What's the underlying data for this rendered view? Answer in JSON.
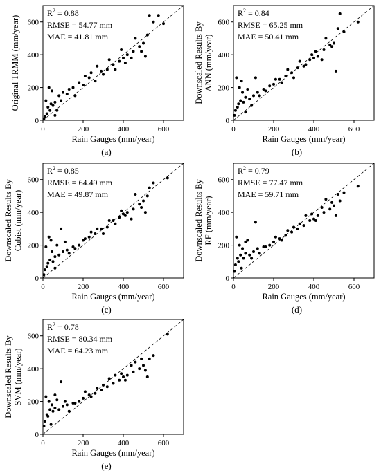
{
  "chart_data": [
    {
      "type": "scatter",
      "panel_label": "(a)",
      "xlabel": "Rain Gauges (mm/year)",
      "ylabel_lines": [
        "Original TRMM (mm/year)"
      ],
      "xlim": [
        0,
        700
      ],
      "ylim": [
        0,
        700
      ],
      "xticks": [
        0,
        200,
        400,
        600
      ],
      "yticks": [
        0,
        200,
        400,
        600
      ],
      "stats": {
        "r2": "0.88",
        "rmse": "RMSE = 54.77 mm",
        "mae": "MAE = 41.81 mm"
      },
      "reference_line": "1:1 dashed",
      "points": [
        [
          10,
          25
        ],
        [
          20,
          40
        ],
        [
          35,
          60
        ],
        [
          50,
          90
        ],
        [
          60,
          110
        ],
        [
          80,
          150
        ],
        [
          100,
          170
        ],
        [
          120,
          160
        ],
        [
          150,
          200
        ],
        [
          180,
          230
        ],
        [
          200,
          215
        ],
        [
          230,
          260
        ],
        [
          260,
          240
        ],
        [
          290,
          300
        ],
        [
          320,
          310
        ],
        [
          350,
          340
        ],
        [
          380,
          360
        ],
        [
          400,
          380
        ],
        [
          420,
          400
        ],
        [
          450,
          420
        ],
        [
          480,
          450
        ],
        [
          500,
          470
        ],
        [
          530,
          640
        ],
        [
          550,
          600
        ],
        [
          600,
          590
        ],
        [
          15,
          120
        ],
        [
          30,
          200
        ],
        [
          45,
          180
        ],
        [
          5,
          10
        ],
        [
          25,
          80
        ],
        [
          70,
          60
        ],
        [
          90,
          120
        ],
        [
          130,
          190
        ],
        [
          160,
          150
        ],
        [
          210,
          270
        ],
        [
          240,
          290
        ],
        [
          270,
          330
        ],
        [
          300,
          280
        ],
        [
          330,
          370
        ],
        [
          360,
          310
        ],
        [
          390,
          430
        ],
        [
          410,
          350
        ],
        [
          440,
          380
        ],
        [
          460,
          500
        ],
        [
          490,
          420
        ],
        [
          510,
          390
        ],
        [
          520,
          520
        ],
        [
          575,
          640
        ],
        [
          40,
          100
        ],
        [
          60,
          30
        ]
      ]
    },
    {
      "type": "scatter",
      "panel_label": "(b)",
      "xlabel": "Rain Gauges (mm/year)",
      "ylabel_lines": [
        "Downscaled Results By",
        "ANN (mm/year)"
      ],
      "xlim": [
        0,
        700
      ],
      "ylim": [
        0,
        700
      ],
      "xticks": [
        0,
        200,
        400,
        600
      ],
      "yticks": [
        0,
        200,
        400,
        600
      ],
      "stats": {
        "r2": "0.84",
        "rmse": "RMSE = 65.25 mm",
        "mae": "MAE = 50.41 mm"
      },
      "reference_line": "1:1 dashed",
      "points": [
        [
          10,
          60
        ],
        [
          20,
          80
        ],
        [
          35,
          120
        ],
        [
          50,
          110
        ],
        [
          60,
          140
        ],
        [
          80,
          130
        ],
        [
          100,
          150
        ],
        [
          120,
          170
        ],
        [
          150,
          190
        ],
        [
          180,
          210
        ],
        [
          200,
          220
        ],
        [
          230,
          250
        ],
        [
          260,
          270
        ],
        [
          290,
          290
        ],
        [
          320,
          320
        ],
        [
          350,
          330
        ],
        [
          380,
          370
        ],
        [
          400,
          380
        ],
        [
          420,
          390
        ],
        [
          450,
          430
        ],
        [
          480,
          460
        ],
        [
          500,
          470
        ],
        [
          530,
          650
        ],
        [
          550,
          540
        ],
        [
          620,
          600
        ],
        [
          15,
          260
        ],
        [
          30,
          200
        ],
        [
          45,
          170
        ],
        [
          5,
          30
        ],
        [
          25,
          100
        ],
        [
          70,
          190
        ],
        [
          90,
          90
        ],
        [
          130,
          150
        ],
        [
          160,
          180
        ],
        [
          210,
          250
        ],
        [
          240,
          230
        ],
        [
          270,
          310
        ],
        [
          300,
          260
        ],
        [
          330,
          360
        ],
        [
          360,
          340
        ],
        [
          390,
          400
        ],
        [
          410,
          420
        ],
        [
          440,
          370
        ],
        [
          460,
          500
        ],
        [
          490,
          450
        ],
        [
          510,
          300
        ],
        [
          520,
          560
        ],
        [
          40,
          240
        ],
        [
          60,
          50
        ],
        [
          110,
          260
        ]
      ]
    },
    {
      "type": "scatter",
      "panel_label": "(c)",
      "xlabel": "Rain Gauges (mm/year)",
      "ylabel_lines": [
        "Downscaled Results By",
        "Cubist (mm/year)"
      ],
      "xlim": [
        0,
        700
      ],
      "ylim": [
        0,
        700
      ],
      "xticks": [
        0,
        200,
        400,
        600
      ],
      "yticks": [
        0,
        200,
        400,
        600
      ],
      "stats": {
        "r2": "0.85",
        "rmse": "RMSE = 64.49 mm",
        "mae": "MAE = 49.87 mm"
      },
      "reference_line": "1:1 dashed",
      "points": [
        [
          10,
          50
        ],
        [
          20,
          70
        ],
        [
          35,
          110
        ],
        [
          50,
          100
        ],
        [
          60,
          130
        ],
        [
          80,
          140
        ],
        [
          100,
          160
        ],
        [
          120,
          170
        ],
        [
          150,
          190
        ],
        [
          180,
          200
        ],
        [
          200,
          230
        ],
        [
          230,
          250
        ],
        [
          260,
          270
        ],
        [
          290,
          300
        ],
        [
          320,
          310
        ],
        [
          350,
          350
        ],
        [
          380,
          370
        ],
        [
          400,
          390
        ],
        [
          420,
          400
        ],
        [
          450,
          420
        ],
        [
          480,
          450
        ],
        [
          500,
          470
        ],
        [
          530,
          550
        ],
        [
          550,
          580
        ],
        [
          620,
          610
        ],
        [
          15,
          190
        ],
        [
          30,
          250
        ],
        [
          45,
          160
        ],
        [
          5,
          20
        ],
        [
          25,
          90
        ],
        [
          70,
          200
        ],
        [
          90,
          300
        ],
        [
          130,
          150
        ],
        [
          160,
          180
        ],
        [
          210,
          240
        ],
        [
          240,
          280
        ],
        [
          270,
          300
        ],
        [
          300,
          270
        ],
        [
          330,
          350
        ],
        [
          360,
          330
        ],
        [
          390,
          410
        ],
        [
          410,
          380
        ],
        [
          440,
          360
        ],
        [
          460,
          510
        ],
        [
          490,
          430
        ],
        [
          510,
          400
        ],
        [
          520,
          500
        ],
        [
          40,
          230
        ],
        [
          60,
          60
        ],
        [
          110,
          220
        ]
      ]
    },
    {
      "type": "scatter",
      "panel_label": "(d)",
      "xlabel": "Rain Gauges (mm/year)",
      "ylabel_lines": [
        "Downscaled Results By",
        "RF (mm/year)"
      ],
      "xlim": [
        0,
        700
      ],
      "ylim": [
        0,
        700
      ],
      "xticks": [
        0,
        200,
        400,
        600
      ],
      "yticks": [
        0,
        200,
        400,
        600
      ],
      "stats": {
        "r2": "0.79",
        "rmse": "RMSE = 77.47 mm",
        "mae": "MAE = 59.71 mm"
      },
      "reference_line": "1:1 dashed",
      "points": [
        [
          10,
          80
        ],
        [
          20,
          120
        ],
        [
          35,
          140
        ],
        [
          50,
          120
        ],
        [
          60,
          150
        ],
        [
          80,
          140
        ],
        [
          100,
          160
        ],
        [
          120,
          180
        ],
        [
          150,
          190
        ],
        [
          180,
          200
        ],
        [
          200,
          220
        ],
        [
          230,
          240
        ],
        [
          260,
          260
        ],
        [
          290,
          280
        ],
        [
          320,
          300
        ],
        [
          350,
          320
        ],
        [
          380,
          350
        ],
        [
          400,
          360
        ],
        [
          420,
          380
        ],
        [
          450,
          400
        ],
        [
          480,
          420
        ],
        [
          500,
          440
        ],
        [
          530,
          470
        ],
        [
          550,
          520
        ],
        [
          620,
          560
        ],
        [
          15,
          250
        ],
        [
          30,
          200
        ],
        [
          45,
          180
        ],
        [
          5,
          40
        ],
        [
          25,
          100
        ],
        [
          70,
          230
        ],
        [
          90,
          120
        ],
        [
          130,
          150
        ],
        [
          160,
          190
        ],
        [
          210,
          250
        ],
        [
          240,
          230
        ],
        [
          270,
          290
        ],
        [
          300,
          310
        ],
        [
          330,
          330
        ],
        [
          360,
          380
        ],
        [
          390,
          390
        ],
        [
          410,
          350
        ],
        [
          440,
          430
        ],
        [
          460,
          480
        ],
        [
          490,
          460
        ],
        [
          510,
          380
        ],
        [
          520,
          510
        ],
        [
          40,
          60
        ],
        [
          60,
          220
        ],
        [
          110,
          340
        ]
      ]
    },
    {
      "type": "scatter",
      "panel_label": "(e)",
      "xlabel": "Rain Gauges (mm/year)",
      "ylabel_lines": [
        "Downscaled Results By",
        "SVM (mm/year)"
      ],
      "xlim": [
        0,
        700
      ],
      "ylim": [
        0,
        700
      ],
      "xticks": [
        0,
        200,
        400,
        600
      ],
      "yticks": [
        0,
        200,
        400,
        600
      ],
      "stats": {
        "r2": "0.78",
        "rmse": "RMSE = 80.34 mm",
        "mae": "MAE = 64.23 mm"
      },
      "reference_line": "1:1 dashed",
      "points": [
        [
          10,
          80
        ],
        [
          20,
          120
        ],
        [
          35,
          150
        ],
        [
          50,
          140
        ],
        [
          60,
          160
        ],
        [
          80,
          150
        ],
        [
          100,
          170
        ],
        [
          120,
          180
        ],
        [
          150,
          190
        ],
        [
          180,
          200
        ],
        [
          200,
          220
        ],
        [
          230,
          240
        ],
        [
          260,
          250
        ],
        [
          290,
          270
        ],
        [
          320,
          290
        ],
        [
          350,
          310
        ],
        [
          380,
          330
        ],
        [
          400,
          350
        ],
        [
          420,
          360
        ],
        [
          450,
          380
        ],
        [
          480,
          400
        ],
        [
          500,
          420
        ],
        [
          530,
          460
        ],
        [
          550,
          480
        ],
        [
          620,
          610
        ],
        [
          15,
          230
        ],
        [
          30,
          200
        ],
        [
          45,
          180
        ],
        [
          5,
          50
        ],
        [
          25,
          110
        ],
        [
          70,
          210
        ],
        [
          90,
          320
        ],
        [
          130,
          140
        ],
        [
          160,
          190
        ],
        [
          210,
          260
        ],
        [
          240,
          230
        ],
        [
          270,
          280
        ],
        [
          300,
          300
        ],
        [
          330,
          340
        ],
        [
          360,
          360
        ],
        [
          390,
          370
        ],
        [
          410,
          330
        ],
        [
          440,
          420
        ],
        [
          460,
          440
        ],
        [
          490,
          460
        ],
        [
          510,
          390
        ],
        [
          520,
          350
        ],
        [
          40,
          60
        ],
        [
          60,
          240
        ],
        [
          110,
          200
        ]
      ]
    }
  ]
}
